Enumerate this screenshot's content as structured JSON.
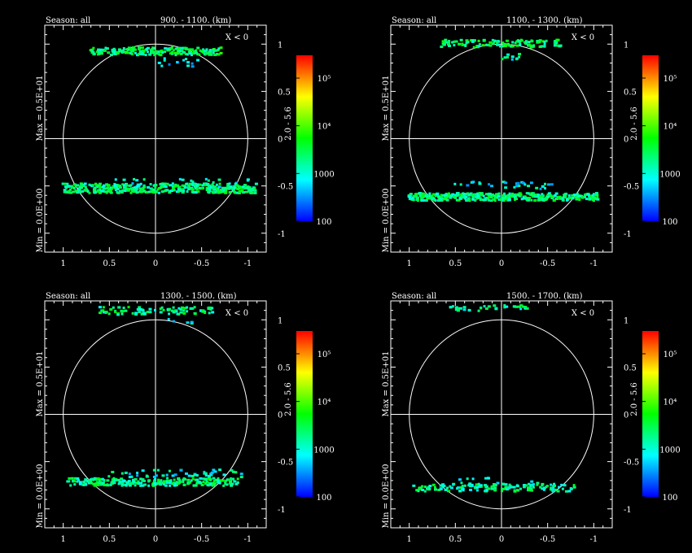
{
  "panels": [
    {
      "season_label": "Season: all",
      "range_label": "900. -  1100. (km)",
      "x_label": "X < 0",
      "max_label": "Max = 0.5E+01",
      "min_label": "Min = 0.0E+00",
      "colorbar_mid_label": "2.0 - 5.6",
      "colorbar_ticks": [
        "100",
        "1000",
        "10⁴",
        "10⁵"
      ]
    },
    {
      "season_label": "Season: all",
      "range_label": "1100. -  1300. (km)",
      "x_label": "X < 0",
      "max_label": "Max = 0.5E+01",
      "min_label": "Min = 0.0E+00",
      "colorbar_mid_label": "2.0 - 5.6",
      "colorbar_ticks": [
        "100",
        "1000",
        "10⁴",
        "10⁵"
      ]
    },
    {
      "season_label": "Season: all",
      "range_label": "1300. -  1500. (km)",
      "x_label": "X < 0",
      "max_label": "Max = 0.5E+01",
      "min_label": "Min = 0.0E+00",
      "colorbar_mid_label": "2.0 - 5.6",
      "colorbar_ticks": [
        "100",
        "1000",
        "10⁴",
        "10⁵"
      ]
    },
    {
      "season_label": "Season: all",
      "range_label": "1500. -  1700. (km)",
      "x_label": "X < 0",
      "max_label": "Max = 0.5E+01",
      "min_label": "Min = 0.0E+00",
      "colorbar_mid_label": "2.0 - 5.6",
      "colorbar_ticks": [
        "100",
        "1000",
        "10⁴",
        "10⁵"
      ]
    }
  ],
  "colors": {
    "background": "#000000",
    "axes": "#ffffff",
    "colormap": [
      "#0000ff",
      "#00ffff",
      "#00ff00",
      "#ffff00",
      "#ff0000"
    ]
  },
  "chart_data": [
    {
      "type": "scatter",
      "title": "900. - 1100. (km)",
      "xlim": [
        1.2,
        -1.2
      ],
      "ylim": [
        -1.2,
        1.2
      ],
      "xticks": [
        "1",
        "0.5",
        "0",
        "-0.5",
        "-1"
      ],
      "yticks": [
        "1",
        "0.5",
        "0",
        "-0.5",
        "-1"
      ],
      "colorbar": {
        "scale": "log",
        "range": [
          100,
          300000
        ],
        "ticks": [
          100,
          1000,
          10000,
          100000
        ]
      },
      "bands": [
        {
          "y": 0.92,
          "y_spread": 0.04,
          "x_range": [
            0.7,
            -0.72
          ],
          "density": 0.9,
          "log_value": 3.4
        },
        {
          "y": 0.78,
          "y_spread": 0.07,
          "x_range": [
            0.15,
            -0.5
          ],
          "density": 0.5,
          "log_value": 2.8
        },
        {
          "y": -0.48,
          "y_spread": 0.05,
          "x_range": [
            0.45,
            -1.05
          ],
          "density": 0.5,
          "log_value": 3.0
        },
        {
          "y": -0.53,
          "y_spread": 0.05,
          "x_range": [
            1.0,
            -1.1
          ],
          "density": 1.0,
          "log_value": 3.3
        }
      ]
    },
    {
      "type": "scatter",
      "title": "1100. - 1300. (km)",
      "xlim": [
        1.2,
        -1.2
      ],
      "ylim": [
        -1.2,
        1.2
      ],
      "xticks": [
        "1",
        "0.5",
        "0",
        "-0.5",
        "-1"
      ],
      "yticks": [
        "1",
        "0.5",
        "0",
        "-0.5",
        "-1"
      ],
      "colorbar": {
        "scale": "log",
        "range": [
          100,
          300000
        ],
        "ticks": [
          100,
          1000,
          10000,
          100000
        ]
      },
      "bands": [
        {
          "y": 1.0,
          "y_spread": 0.04,
          "x_range": [
            0.65,
            -0.65
          ],
          "density": 0.8,
          "log_value": 3.4
        },
        {
          "y": 0.86,
          "y_spread": 0.03,
          "x_range": [
            0.1,
            -0.2
          ],
          "density": 0.5,
          "log_value": 3.1
        },
        {
          "y": -0.5,
          "y_spread": 0.04,
          "x_range": [
            0.5,
            -0.6
          ],
          "density": 0.5,
          "log_value": 2.9
        },
        {
          "y": -0.62,
          "y_spread": 0.04,
          "x_range": [
            1.0,
            -1.05
          ],
          "density": 1.0,
          "log_value": 3.3
        }
      ]
    },
    {
      "type": "scatter",
      "title": "1300. - 1500. (km)",
      "xlim": [
        1.2,
        -1.2
      ],
      "ylim": [
        -1.2,
        1.2
      ],
      "xticks": [
        "1",
        "0.5",
        "0",
        "-0.5",
        "-1"
      ],
      "yticks": [
        "1",
        "0.5",
        "0",
        "-0.5",
        "-1"
      ],
      "colorbar": {
        "scale": "log",
        "range": [
          100,
          300000
        ],
        "ticks": [
          100,
          1000,
          10000,
          100000
        ]
      },
      "bands": [
        {
          "y": 1.09,
          "y_spread": 0.04,
          "x_range": [
            0.6,
            -0.65
          ],
          "density": 0.7,
          "log_value": 3.3
        },
        {
          "y": 0.98,
          "y_spread": 0.03,
          "x_range": [
            0.0,
            -0.4
          ],
          "density": 0.4,
          "log_value": 2.9
        },
        {
          "y": -0.63,
          "y_spread": 0.04,
          "x_range": [
            0.5,
            -0.95
          ],
          "density": 0.5,
          "log_value": 3.0
        },
        {
          "y": -0.72,
          "y_spread": 0.04,
          "x_range": [
            0.95,
            -0.9
          ],
          "density": 0.9,
          "log_value": 3.3
        }
      ]
    },
    {
      "type": "scatter",
      "title": "1500. - 1700. (km)",
      "xlim": [
        1.2,
        -1.2
      ],
      "ylim": [
        -1.2,
        1.2
      ],
      "xticks": [
        "1",
        "0.5",
        "0",
        "-0.5",
        "-1"
      ],
      "yticks": [
        "1",
        "0.5",
        "0",
        "-0.5",
        "-1"
      ],
      "colorbar": {
        "scale": "log",
        "range": [
          100,
          300000
        ],
        "ticks": [
          100,
          1000,
          10000,
          100000
        ]
      },
      "bands": [
        {
          "y": 1.12,
          "y_spread": 0.03,
          "x_range": [
            0.55,
            -0.3
          ],
          "density": 0.6,
          "log_value": 3.2
        },
        {
          "y": -0.7,
          "y_spread": 0.04,
          "x_range": [
            0.45,
            -0.4
          ],
          "density": 0.4,
          "log_value": 3.0
        },
        {
          "y": -0.78,
          "y_spread": 0.04,
          "x_range": [
            0.95,
            -0.8
          ],
          "density": 0.8,
          "log_value": 3.2
        }
      ]
    }
  ]
}
